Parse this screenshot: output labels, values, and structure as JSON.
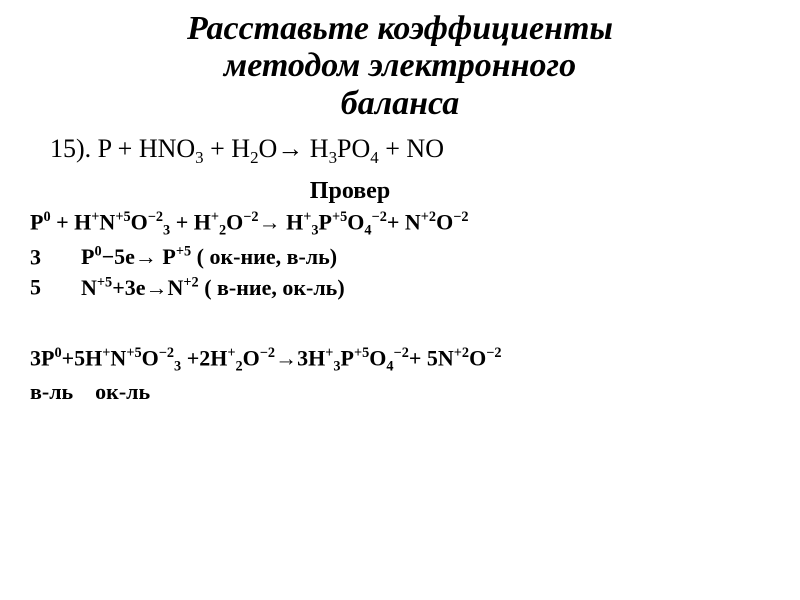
{
  "title": {
    "text_line1": "Расставьте коэффициенты",
    "text_line2": "методом электронного",
    "text_line3": "баланса",
    "fontsize": 34,
    "color": "#000000",
    "italic": true,
    "bold": true
  },
  "equation": {
    "number": "15).",
    "formula_html": "P + HNO<sub>3</sub> + H<sub>2</sub>O→ H<sub>3</sub>PO<sub>4</sub> + NO",
    "fontsize": 26,
    "color": "#000000"
  },
  "check_label": {
    "text": "Провер",
    "fontsize": 24,
    "bold": true
  },
  "balance": {
    "fontsize": 22,
    "bold": true,
    "line1_html": "P<sup>0</sup> + H<sup>+</sup>N<sup>+5</sup>O<sup>−2</sup><sub>3</sub> + H<sup>+</sup><sub>2</sub>O<sup>−2</sup>→ H<sup>+</sup><sub>3</sub>P<sup>+5</sup>O<sub>4</sub><sup>−2</sup>+ N<sup>+2</sup>O<sup>−2</sup>",
    "line2_coef": "3",
    "line2_html": "P<sup>0</sup>−5e→ P<sup>+5</sup> ( ок-ние, в-ль)",
    "line3_coef": "5",
    "line3_html": "N<sup>+5</sup>+3e→N<sup>+2</sup> ( в-ние, ок-ль)"
  },
  "result": {
    "fontsize": 22,
    "bold": true,
    "line1_html": "3P<sup>0</sup>+5H<sup>+</sup>N<sup>+5</sup>O<sup>−2</sup><sub>3</sub> +2H<sup>+</sup><sub>2</sub>O<sup>−2</sup>→3H<sup>+</sup><sub>3</sub>P<sup>+5</sup>O<sub>4</sub><sup>−2</sup>+ 5N<sup>+2</sup>O<sup>−2</sup>",
    "line2_html": "в-ль&nbsp;&nbsp;&nbsp;&nbsp;ок-ль"
  },
  "colors": {
    "background": "#ffffff",
    "text": "#000000"
  }
}
